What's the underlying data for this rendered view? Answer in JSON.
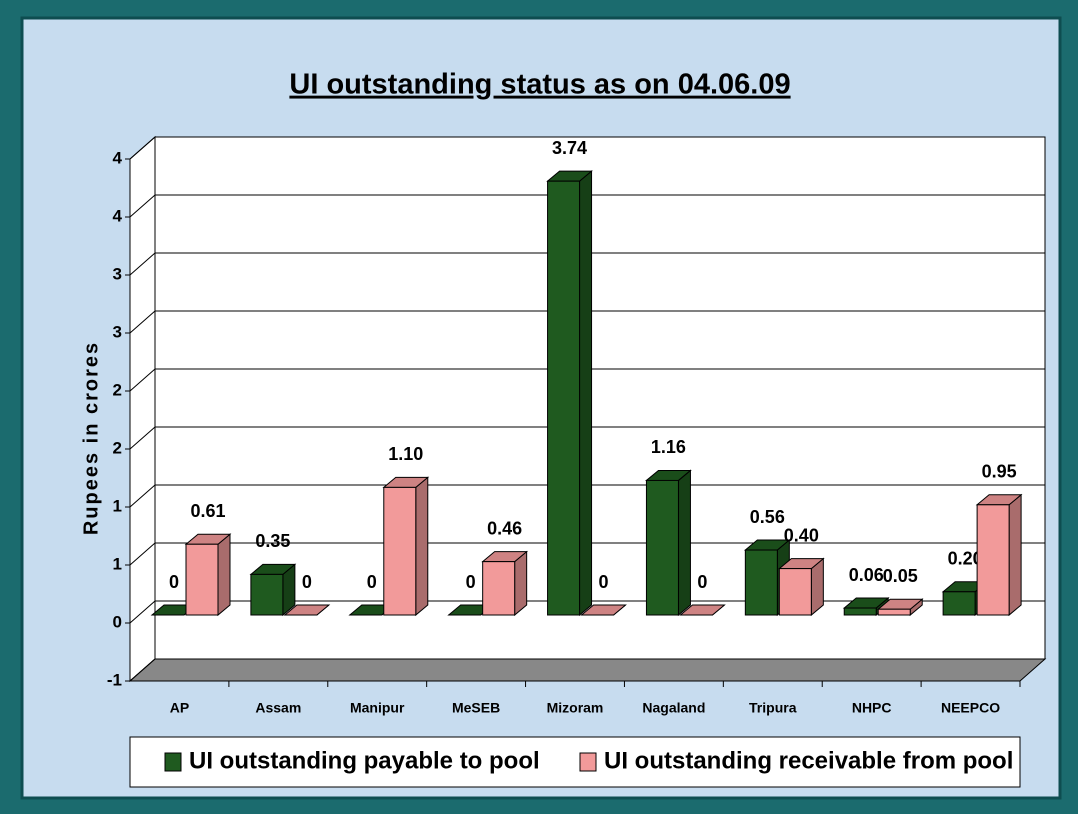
{
  "chart_data": {
    "type": "bar3d",
    "title": "UI outstanding status as on 04.06.09",
    "y_label": "Rupees in crores",
    "categories": [
      "AP",
      "Assam",
      "Manipur",
      "MeSEB",
      "Mizoram",
      "Nagaland",
      "Tripura",
      "NHPC",
      "NEEPCO"
    ],
    "series": [
      {
        "name": "UI outstanding payable to pool",
        "color": "#1f5a1f",
        "values": [
          0,
          0.35,
          0,
          0,
          3.74,
          1.16,
          0.56,
          0.06,
          0.2
        ],
        "value_labels": [
          "0",
          "0.35",
          "0",
          "0",
          "3.74",
          "1.16",
          "0.56",
          "0.06",
          "0.20"
        ]
      },
      {
        "name": "UI outstanding receivable from pool",
        "color": "#f29a9a",
        "values": [
          0.61,
          0,
          1.1,
          0.46,
          0,
          0,
          0.4,
          0.05,
          0.95
        ],
        "value_labels": [
          "0.61",
          "0",
          "1.10",
          "0.46",
          "0",
          "0",
          "0.40",
          "0.05",
          "0.95"
        ]
      }
    ],
    "ylim": [
      -0.5,
      4
    ],
    "yticks": [
      {
        "value": -0.5,
        "label": "-1"
      },
      0,
      {
        "value": 0.5,
        "label": "1"
      },
      1,
      {
        "value": 1.5,
        "label": "2"
      },
      2,
      {
        "value": 2.5,
        "label": "3"
      },
      3,
      {
        "value": 3.5,
        "label": "4"
      },
      4
    ],
    "grid": true,
    "legend": "bottom"
  }
}
